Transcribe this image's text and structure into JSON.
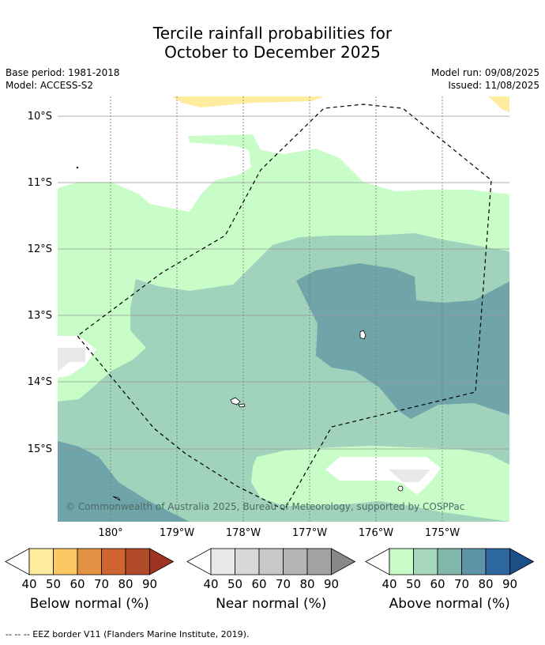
{
  "title_line1": "Tercile rainfall probabilities for",
  "title_line2": "October to December 2025",
  "meta_left": [
    "Base period: 1981-2018",
    "Model: ACCESS-S2"
  ],
  "meta_right": [
    "Model run: 09/08/2025",
    "Issued: 11/08/2025"
  ],
  "lat_labels": [
    "10°S",
    "11°S",
    "12°S",
    "13°S",
    "14°S",
    "15°S"
  ],
  "lon_labels": [
    "180°",
    "179°W",
    "178°W",
    "177°W",
    "176°W",
    "175°W"
  ],
  "copyright": "© Commonwealth of Australia 2025, Bureau of Meteorology, supported by COSPPac",
  "colorbars": [
    {
      "label": "Below normal (%)",
      "ticks": [
        "40",
        "50",
        "60",
        "70",
        "80",
        "90"
      ],
      "colors": [
        "#ffffff",
        "#feec9f",
        "#fdc863",
        "#e39244",
        "#cf6431",
        "#b04a2a",
        "#9e3322"
      ]
    },
    {
      "label": "Near normal (%)",
      "ticks": [
        "40",
        "50",
        "60",
        "70",
        "80",
        "90"
      ],
      "colors": [
        "#ffffff",
        "#e8e8e8",
        "#d8d8d8",
        "#c8c8c8",
        "#b5b5b5",
        "#a2a2a2",
        "#888888"
      ]
    },
    {
      "label": "Above normal (%)",
      "ticks": [
        "40",
        "50",
        "60",
        "70",
        "80",
        "90"
      ],
      "colors": [
        "#ffffff",
        "#c8fdc8",
        "#a8d8bc",
        "#80b8ac",
        "#5c94a8",
        "#2f68a0",
        "#1a4f88"
      ]
    }
  ],
  "footnote": "--  --  -- EEZ border V11 (Flanders Marine Institute, 2019)."
}
